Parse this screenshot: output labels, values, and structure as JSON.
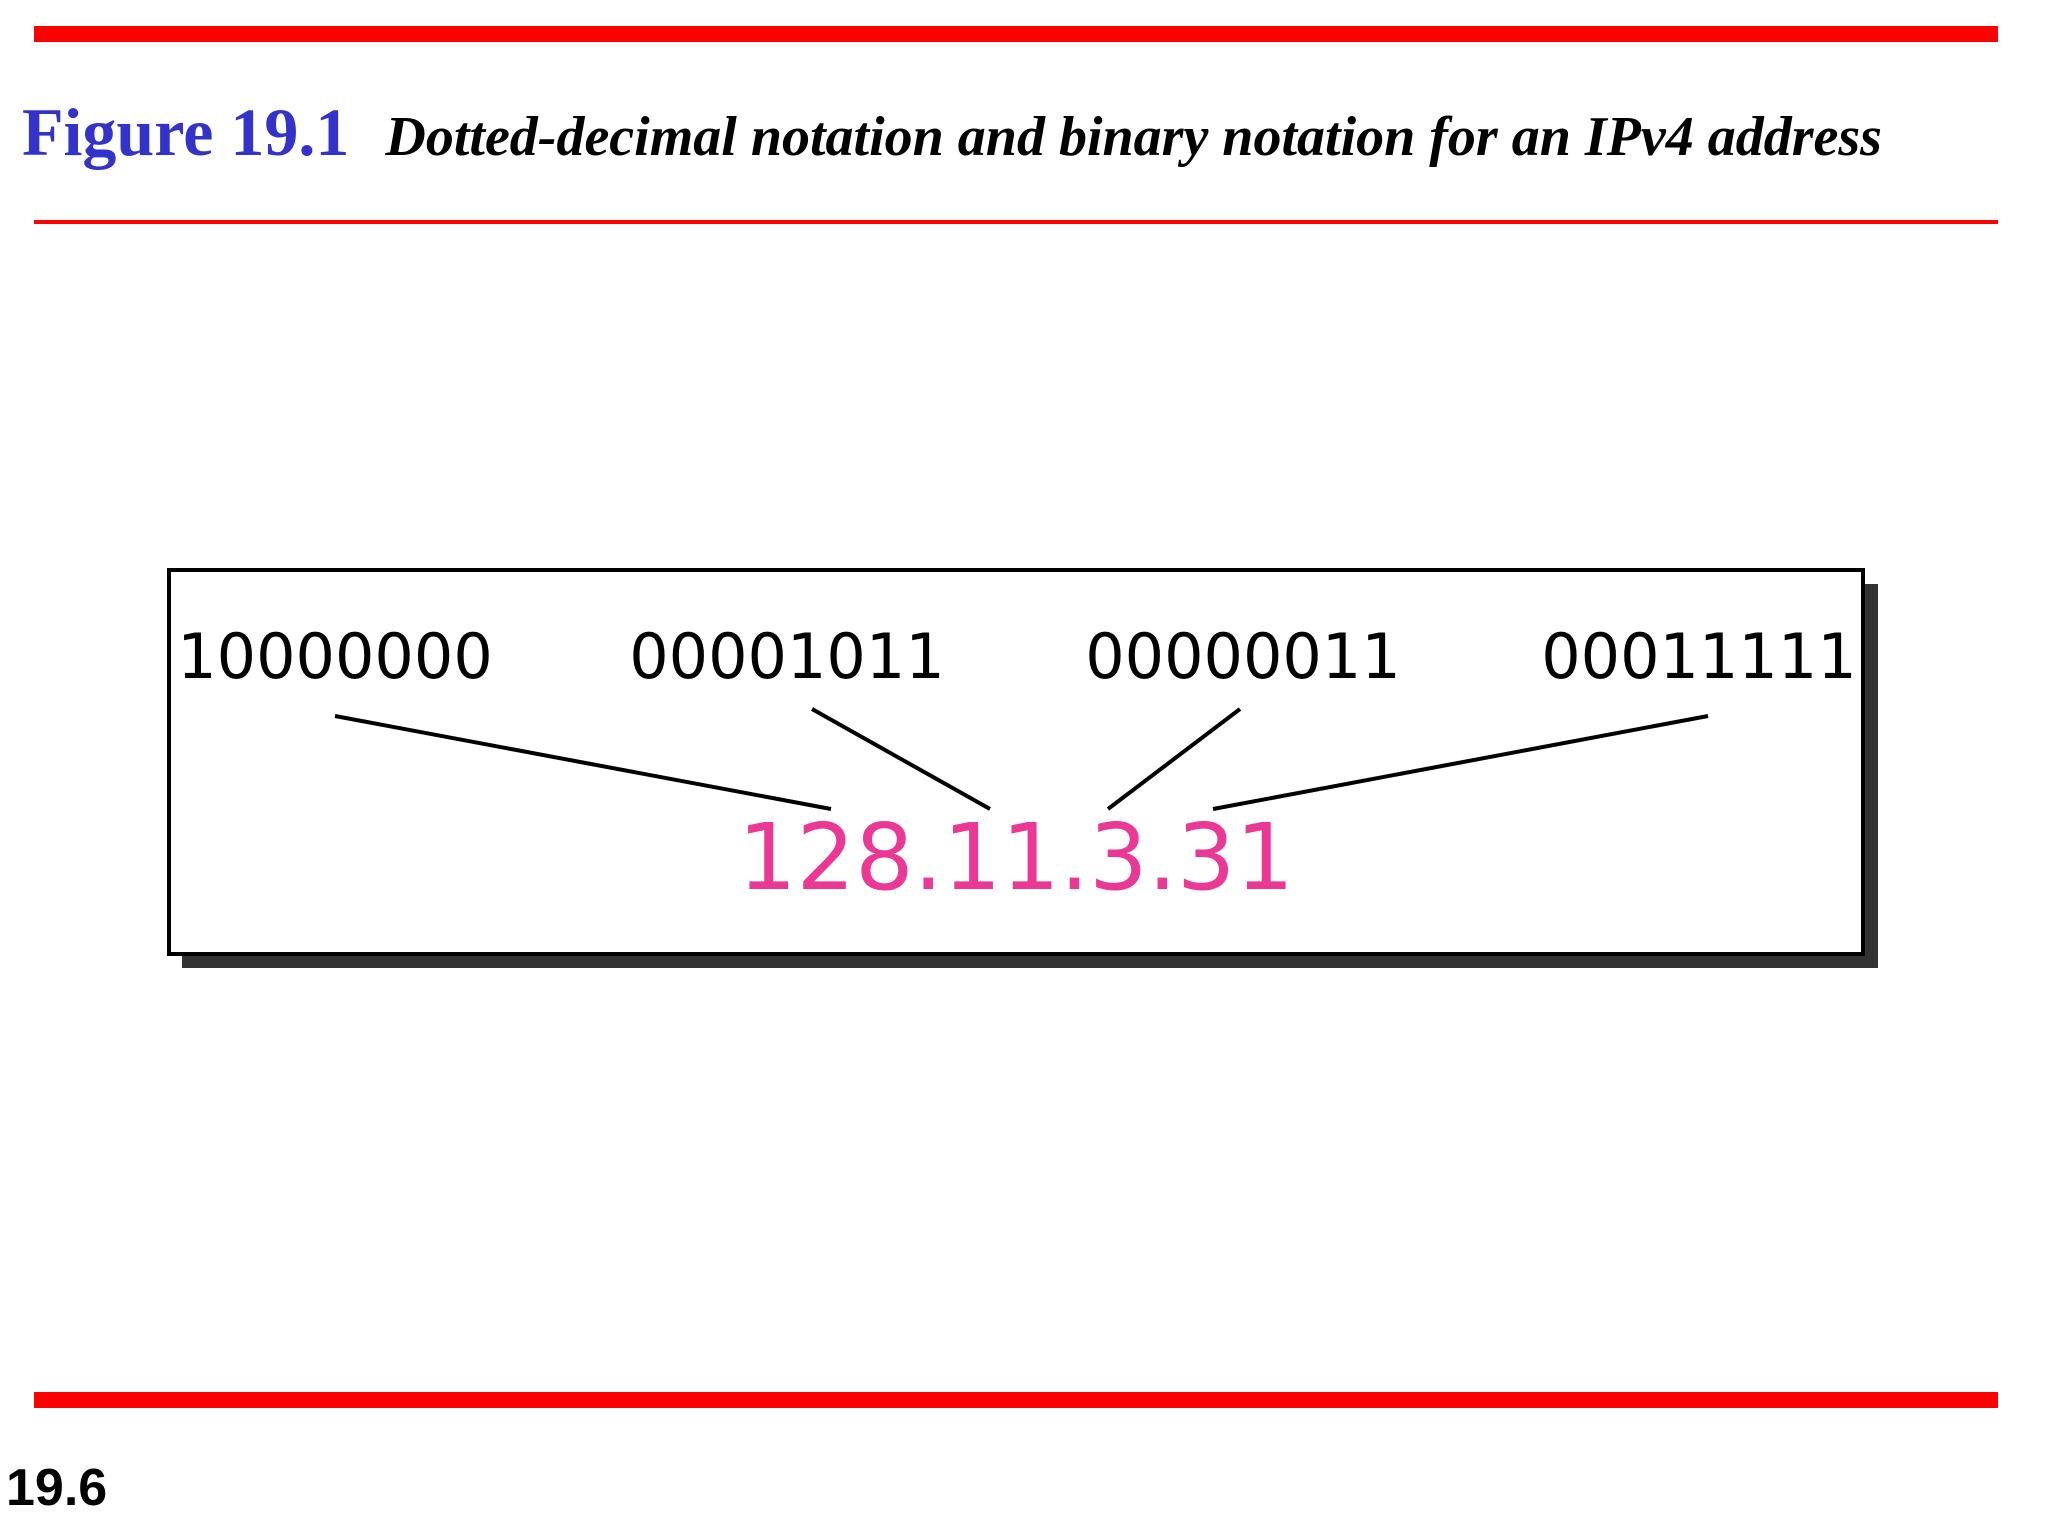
{
  "colors": {
    "rule": "#ff0000",
    "figure_number": "#3333cc",
    "decimal_address": "#ec3895",
    "box_shadow": "#333333"
  },
  "title": {
    "figure_number": "Figure 19.1",
    "caption": "Dotted-decimal notation and binary notation for an IPv4 address"
  },
  "diagram": {
    "binary_octets": [
      "10000000",
      "00001011",
      "00000011",
      "00011111"
    ],
    "dotted_decimal": "128.11.3.31"
  },
  "footer": {
    "slide_number": "19.6"
  }
}
